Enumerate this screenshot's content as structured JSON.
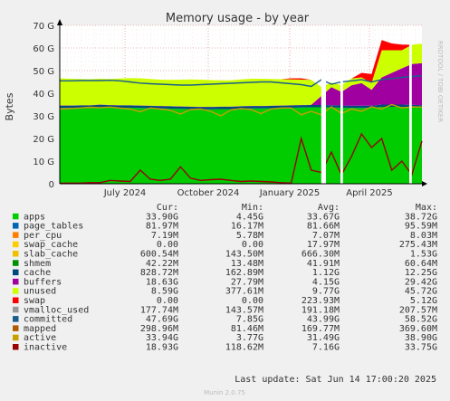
{
  "chart_data": {
    "type": "area",
    "title": "Memory usage - by year",
    "ylabel": "Bytes",
    "side_label": "RRDTOOL / TOBI OETIKER",
    "ylim": [
      0,
      70
    ],
    "y_unit": "G",
    "y_ticks": [
      "0",
      "10 G",
      "20 G",
      "30 G",
      "40 G",
      "50 G",
      "60 G",
      "70 G"
    ],
    "x_ticks": [
      {
        "label": "July 2024",
        "t": 0.18
      },
      {
        "label": "October 2024",
        "t": 0.41
      },
      {
        "label": "January 2025",
        "t": 0.635
      },
      {
        "label": "April 2025",
        "t": 0.855
      }
    ],
    "grid": true,
    "gaps": [
      [
        0.722,
        0.735
      ],
      [
        0.775,
        0.782
      ],
      [
        0.965,
        0.972
      ]
    ],
    "columns": [
      "",
      "Cur:",
      "Min:",
      "Avg:",
      "Max:"
    ],
    "legend": [
      {
        "name": "apps",
        "color": "#00cc00",
        "cur": "33.90G",
        "min": "4.45G",
        "avg": "33.67G",
        "max": "38.72G"
      },
      {
        "name": "page_tables",
        "color": "#0066b3",
        "cur": "81.97M",
        "min": "16.17M",
        "avg": "81.66M",
        "max": "95.59M"
      },
      {
        "name": "per_cpu",
        "color": "#ff8000",
        "cur": "7.19M",
        "min": "5.78M",
        "avg": "7.07M",
        "max": "8.03M"
      },
      {
        "name": "swap_cache",
        "color": "#ffcc00",
        "cur": "0.00",
        "min": "0.00",
        "avg": "17.97M",
        "max": "275.43M"
      },
      {
        "name": "slab_cache",
        "color": "#f0c000",
        "cur": "600.54M",
        "min": "143.50M",
        "avg": "666.30M",
        "max": "1.53G"
      },
      {
        "name": "shmem",
        "color": "#008f00",
        "cur": "42.22M",
        "min": "13.48M",
        "avg": "41.91M",
        "max": "60.64M"
      },
      {
        "name": "cache",
        "color": "#00487d",
        "cur": "828.72M",
        "min": "162.89M",
        "avg": "1.12G",
        "max": "12.25G"
      },
      {
        "name": "buffers",
        "color": "#a000a0",
        "cur": "18.63G",
        "min": "27.79M",
        "avg": "4.15G",
        "max": "29.42G"
      },
      {
        "name": "unused",
        "color": "#ccff00",
        "cur": "8.59G",
        "min": "377.61M",
        "avg": "9.77G",
        "max": "45.72G"
      },
      {
        "name": "swap",
        "color": "#ff0000",
        "cur": "0.00",
        "min": "0.00",
        "avg": "223.93M",
        "max": "5.12G"
      },
      {
        "name": "vmalloc_used",
        "color": "#999999",
        "cur": "177.74M",
        "min": "143.57M",
        "avg": "191.18M",
        "max": "207.57M"
      },
      {
        "name": "committed",
        "color": "#1a5e8c",
        "cur": "47.69G",
        "min": "7.85G",
        "avg": "43.99G",
        "max": "58.52G"
      },
      {
        "name": "mapped",
        "color": "#b25a00",
        "cur": "298.96M",
        "min": "81.46M",
        "avg": "169.77M",
        "max": "369.60M"
      },
      {
        "name": "active",
        "color": "#c8a000",
        "cur": "33.94G",
        "min": "3.77G",
        "avg": "31.49G",
        "max": "38.90G"
      },
      {
        "name": "inactive",
        "color": "#990000",
        "cur": "18.93G",
        "min": "118.62M",
        "avg": "7.16G",
        "max": "33.75G"
      }
    ],
    "series_profile": [
      {
        "name": "apps",
        "values": [
          33.5,
          33.5,
          33.6,
          33.6,
          33.7,
          33.7,
          33.6,
          33.6,
          33.5,
          33.4,
          33.3,
          33.2,
          33.1,
          33.0,
          32.9,
          32.9,
          33.0,
          33.0,
          33.2,
          33.3,
          33.3,
          33.4,
          33.5,
          33.6,
          33.7,
          33.8,
          33.8,
          33.7,
          33.6,
          33.5,
          33.5,
          33.5,
          34.0,
          34.0,
          34.0,
          33.9,
          33.9
        ]
      },
      {
        "name": "cache",
        "values": [
          1.0,
          1.0,
          1.0,
          1.0,
          1.2,
          1.0,
          1.0,
          1.0,
          1.0,
          1.0,
          1.0,
          1.0,
          1.0,
          1.0,
          1.0,
          1.0,
          1.0,
          1.0,
          1.0,
          1.0,
          1.0,
          1.0,
          1.0,
          1.0,
          1.0,
          1.0,
          1.0,
          1.0,
          1.0,
          1.0,
          1.0,
          1.0,
          1.0,
          1.0,
          1.0,
          1.0,
          0.8
        ]
      },
      {
        "name": "buffers",
        "values": [
          0.1,
          0.1,
          0.1,
          0.1,
          0.1,
          0.1,
          0.1,
          0.1,
          0.1,
          0.1,
          0.1,
          0.1,
          0.1,
          0.1,
          0.1,
          0.1,
          0.1,
          0.1,
          0.1,
          0.1,
          0.1,
          0.1,
          0.1,
          0.1,
          0.1,
          0.1,
          4.0,
          8.0,
          6.0,
          9.0,
          10.0,
          7.0,
          12.0,
          14.0,
          16.0,
          18.0,
          18.6
        ]
      },
      {
        "name": "unused",
        "values": [
          12.0,
          11.8,
          11.6,
          11.5,
          11.4,
          11.5,
          11.8,
          12.0,
          12.0,
          11.8,
          11.6,
          11.6,
          11.8,
          12.0,
          12.0,
          11.8,
          11.6,
          11.6,
          11.8,
          12.0,
          12.0,
          11.8,
          11.6,
          11.4,
          11.2,
          11.0,
          4.0,
          2.0,
          3.0,
          3.0,
          2.5,
          3.0,
          12.0,
          10.0,
          8.0,
          8.5,
          8.6
        ]
      },
      {
        "name": "swap",
        "values": [
          0,
          0,
          0,
          0,
          0,
          0,
          0,
          0,
          0,
          0,
          0,
          0,
          0,
          0,
          0,
          0,
          0,
          0,
          0,
          0,
          0,
          0,
          0,
          0.5,
          0.6,
          0,
          0,
          0,
          0,
          0,
          2.0,
          4.0,
          4.5,
          3.0,
          2.5,
          0,
          0
        ]
      },
      {
        "name": "committed",
        "values": [
          45.5,
          45.5,
          45.6,
          45.6,
          45.6,
          45.7,
          45.5,
          45.0,
          44.5,
          44.2,
          44.0,
          43.8,
          43.6,
          43.6,
          43.8,
          44.0,
          44.2,
          44.4,
          44.6,
          44.8,
          45.0,
          45.0,
          44.6,
          44.2,
          43.8,
          43.0,
          46.0,
          44.0,
          45.0,
          45.5,
          46.0,
          45.0,
          46.0,
          46.5,
          47.0,
          47.4,
          47.7
        ]
      },
      {
        "name": "active",
        "values": [
          33.0,
          33.2,
          33.5,
          33.8,
          33.6,
          33.9,
          33.4,
          33.0,
          31.8,
          33.5,
          33.0,
          32.5,
          30.8,
          32.8,
          33.0,
          32.0,
          30.0,
          32.6,
          33.2,
          32.8,
          31.0,
          33.0,
          33.5,
          33.5,
          30.5,
          32.0,
          30.5,
          34.0,
          31.0,
          33.0,
          32.0,
          34.0,
          33.0,
          35.0,
          33.5,
          34.0,
          33.9
        ]
      },
      {
        "name": "inactive",
        "values": [
          0.2,
          0.3,
          0.3,
          0.5,
          0.5,
          1.5,
          1.2,
          1.0,
          6.0,
          2.0,
          1.5,
          2.0,
          7.5,
          2.5,
          1.5,
          1.8,
          2.0,
          1.5,
          1.0,
          1.2,
          1.0,
          0.8,
          0.5,
          0.3,
          20.0,
          6.0,
          5.0,
          14.0,
          4.0,
          12.0,
          22.0,
          16.0,
          20.0,
          6.0,
          10.0,
          4.0,
          18.9
        ]
      }
    ],
    "last_update": "Last update: Sat Jun 14 17:00:20 2025",
    "footer": "Munin 2.0.75"
  }
}
